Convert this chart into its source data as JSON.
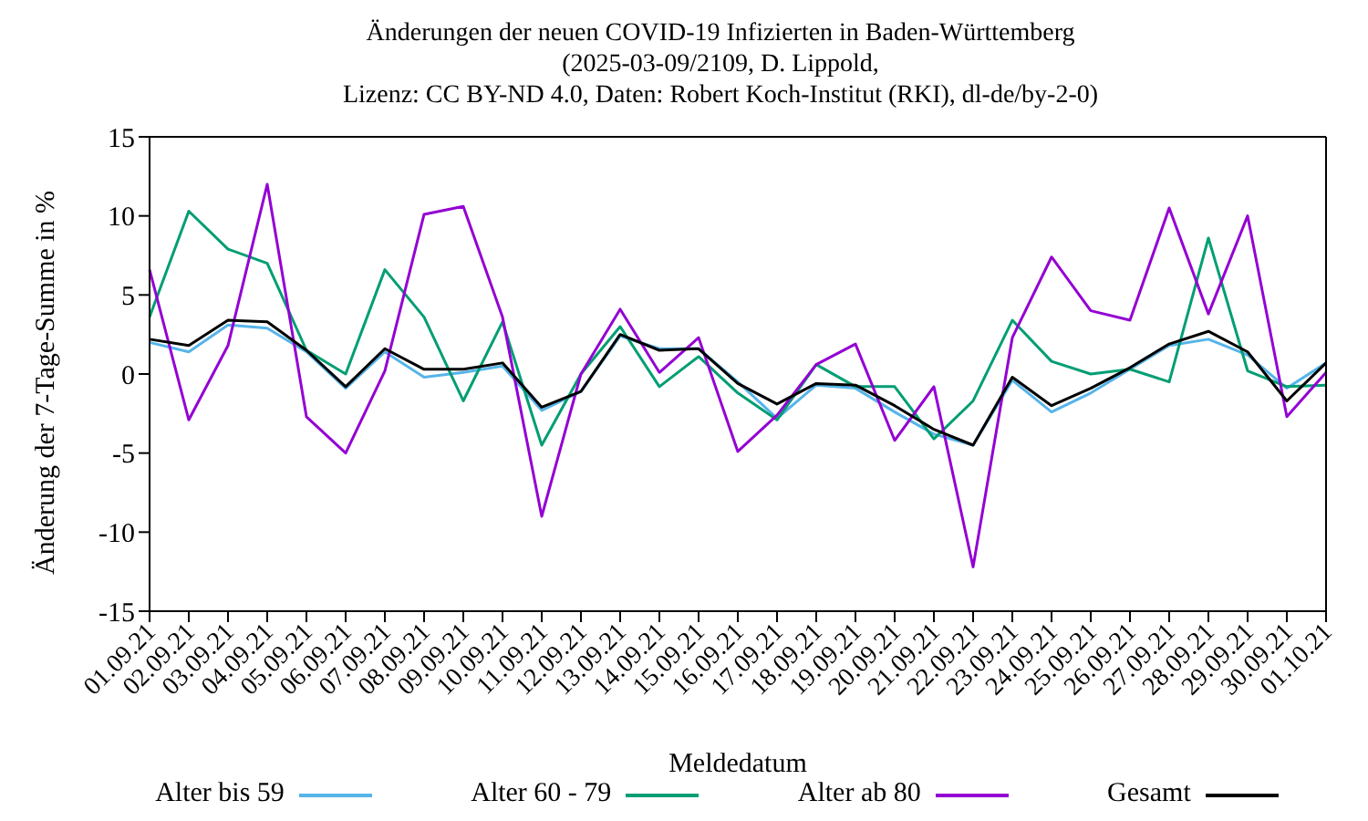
{
  "chart_data": {
    "type": "line",
    "title": "Änderungen der neuen COVID-19 Infizierten in Baden-Württemberg",
    "subtitle": "(2025-03-09/2109, D. Lippold,\nLizenz: CC BY-ND 4.0, Daten: Robert Koch-Institut (RKI), dl-de/by-2-0)",
    "xlabel": "Meldedatum",
    "ylabel": "Änderung der 7-Tage-Summe in %",
    "categories": [
      "01.09.21",
      "02.09.21",
      "03.09.21",
      "04.09.21",
      "05.09.21",
      "06.09.21",
      "07.09.21",
      "08.09.21",
      "09.09.21",
      "10.09.21",
      "11.09.21",
      "12.09.21",
      "13.09.21",
      "14.09.21",
      "15.09.21",
      "16.09.21",
      "17.09.21",
      "18.09.21",
      "19.09.21",
      "20.09.21",
      "21.09.21",
      "22.09.21",
      "23.09.21",
      "24.09.21",
      "25.09.21",
      "26.09.21",
      "27.09.21",
      "28.09.21",
      "29.09.21",
      "30.09.21",
      "01.10.21"
    ],
    "series": [
      {
        "name": "Alter bis 59",
        "color": "#56b4e9",
        "values": [
          2.0,
          1.4,
          3.1,
          2.9,
          1.4,
          -0.9,
          1.4,
          -0.2,
          0.1,
          0.5,
          -2.3,
          -1.1,
          2.4,
          1.6,
          1.6,
          -0.5,
          -2.8,
          -0.7,
          -0.9,
          -2.4,
          -3.8,
          -4.5,
          -0.4,
          -2.4,
          -1.2,
          0.3,
          1.8,
          2.2,
          1.2,
          -0.9,
          0.7
        ]
      },
      {
        "name": "Alter 60 - 79",
        "color": "#009e73",
        "values": [
          3.6,
          10.3,
          7.9,
          7.0,
          1.5,
          0.0,
          6.6,
          3.6,
          -1.7,
          3.3,
          -4.5,
          0.0,
          3.0,
          -0.8,
          1.1,
          -1.2,
          -2.9,
          0.6,
          -0.8,
          -0.8,
          -4.1,
          -1.7,
          3.4,
          0.8,
          0.0,
          0.3,
          -0.5,
          8.6,
          0.2,
          -0.8,
          -0.7
        ]
      },
      {
        "name": "Alter ab 80",
        "color": "#9400d3",
        "values": [
          6.6,
          -2.9,
          1.8,
          12.0,
          -2.7,
          -5.0,
          0.2,
          10.1,
          10.6,
          3.6,
          -9.0,
          0.0,
          4.1,
          0.1,
          2.3,
          -4.9,
          -2.6,
          0.6,
          1.9,
          -4.2,
          -0.8,
          -12.2,
          2.3,
          7.4,
          4.0,
          3.4,
          10.5,
          3.8,
          10.0,
          -2.7,
          0.1
        ]
      },
      {
        "name": "Gesamt",
        "color": "#000000",
        "values": [
          2.2,
          1.8,
          3.4,
          3.3,
          1.5,
          -0.8,
          1.6,
          0.3,
          0.3,
          0.7,
          -2.1,
          -1.1,
          2.5,
          1.5,
          1.6,
          -0.6,
          -1.9,
          -0.6,
          -0.7,
          -2.0,
          -3.5,
          -4.5,
          -0.2,
          -2.0,
          -0.9,
          0.4,
          1.9,
          2.7,
          1.4,
          -1.7,
          0.7
        ]
      }
    ],
    "ylim": [
      -15,
      15
    ],
    "yticks": [
      -15,
      -10,
      -5,
      0,
      5,
      10,
      15
    ],
    "legend": "bottom",
    "marker": "none",
    "line_style": "solid"
  }
}
